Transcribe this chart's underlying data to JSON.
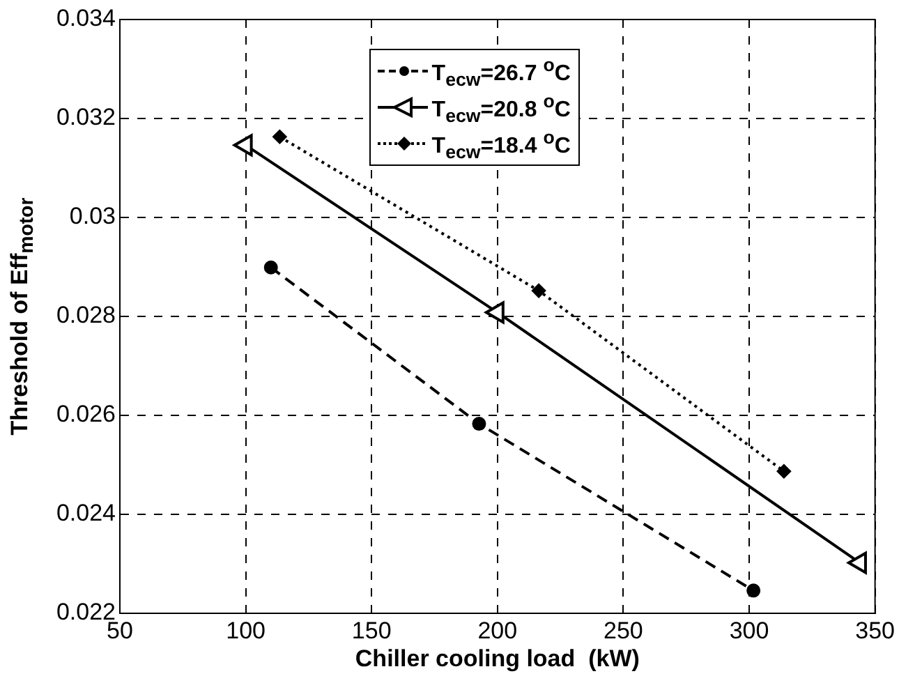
{
  "chart_data": {
    "type": "line",
    "xlabel": "Chiller cooling load  (kW)",
    "ylabel": "Threshold of Eff$_{motor}$",
    "xlim": [
      50,
      350
    ],
    "xticks": [
      50,
      100,
      150,
      200,
      250,
      300,
      350
    ],
    "ylim": [
      0.022,
      0.034
    ],
    "yticks": [
      0.022,
      0.024,
      0.026,
      0.028,
      0.03,
      0.032,
      0.034
    ],
    "grid": true,
    "legend": "top",
    "series": [
      {
        "name": "T$_{ecw}$=26.7 $^{o}$C",
        "color": "#000000",
        "marker": "circle",
        "line_style": "dashed",
        "x": [
          110,
          192.7,
          301.7
        ],
        "values": [
          0.02899,
          0.02583,
          0.02246
        ]
      },
      {
        "name": "T$_{ecw}$=20.8 $^{o}$C",
        "color": "#000000",
        "marker": "triangle",
        "line_style": "solid",
        "x": [
          100,
          200,
          344
        ],
        "values": [
          0.03146,
          0.02808,
          0.02302
        ]
      },
      {
        "name": "T$_{ecw}$=18.4 $^{o}$C",
        "color": "#000000",
        "marker": "diamond",
        "line_style": "dotted",
        "x": [
          113.5,
          216.4,
          313.8
        ],
        "values": [
          0.03163,
          0.02852,
          0.02487
        ]
      }
    ]
  }
}
